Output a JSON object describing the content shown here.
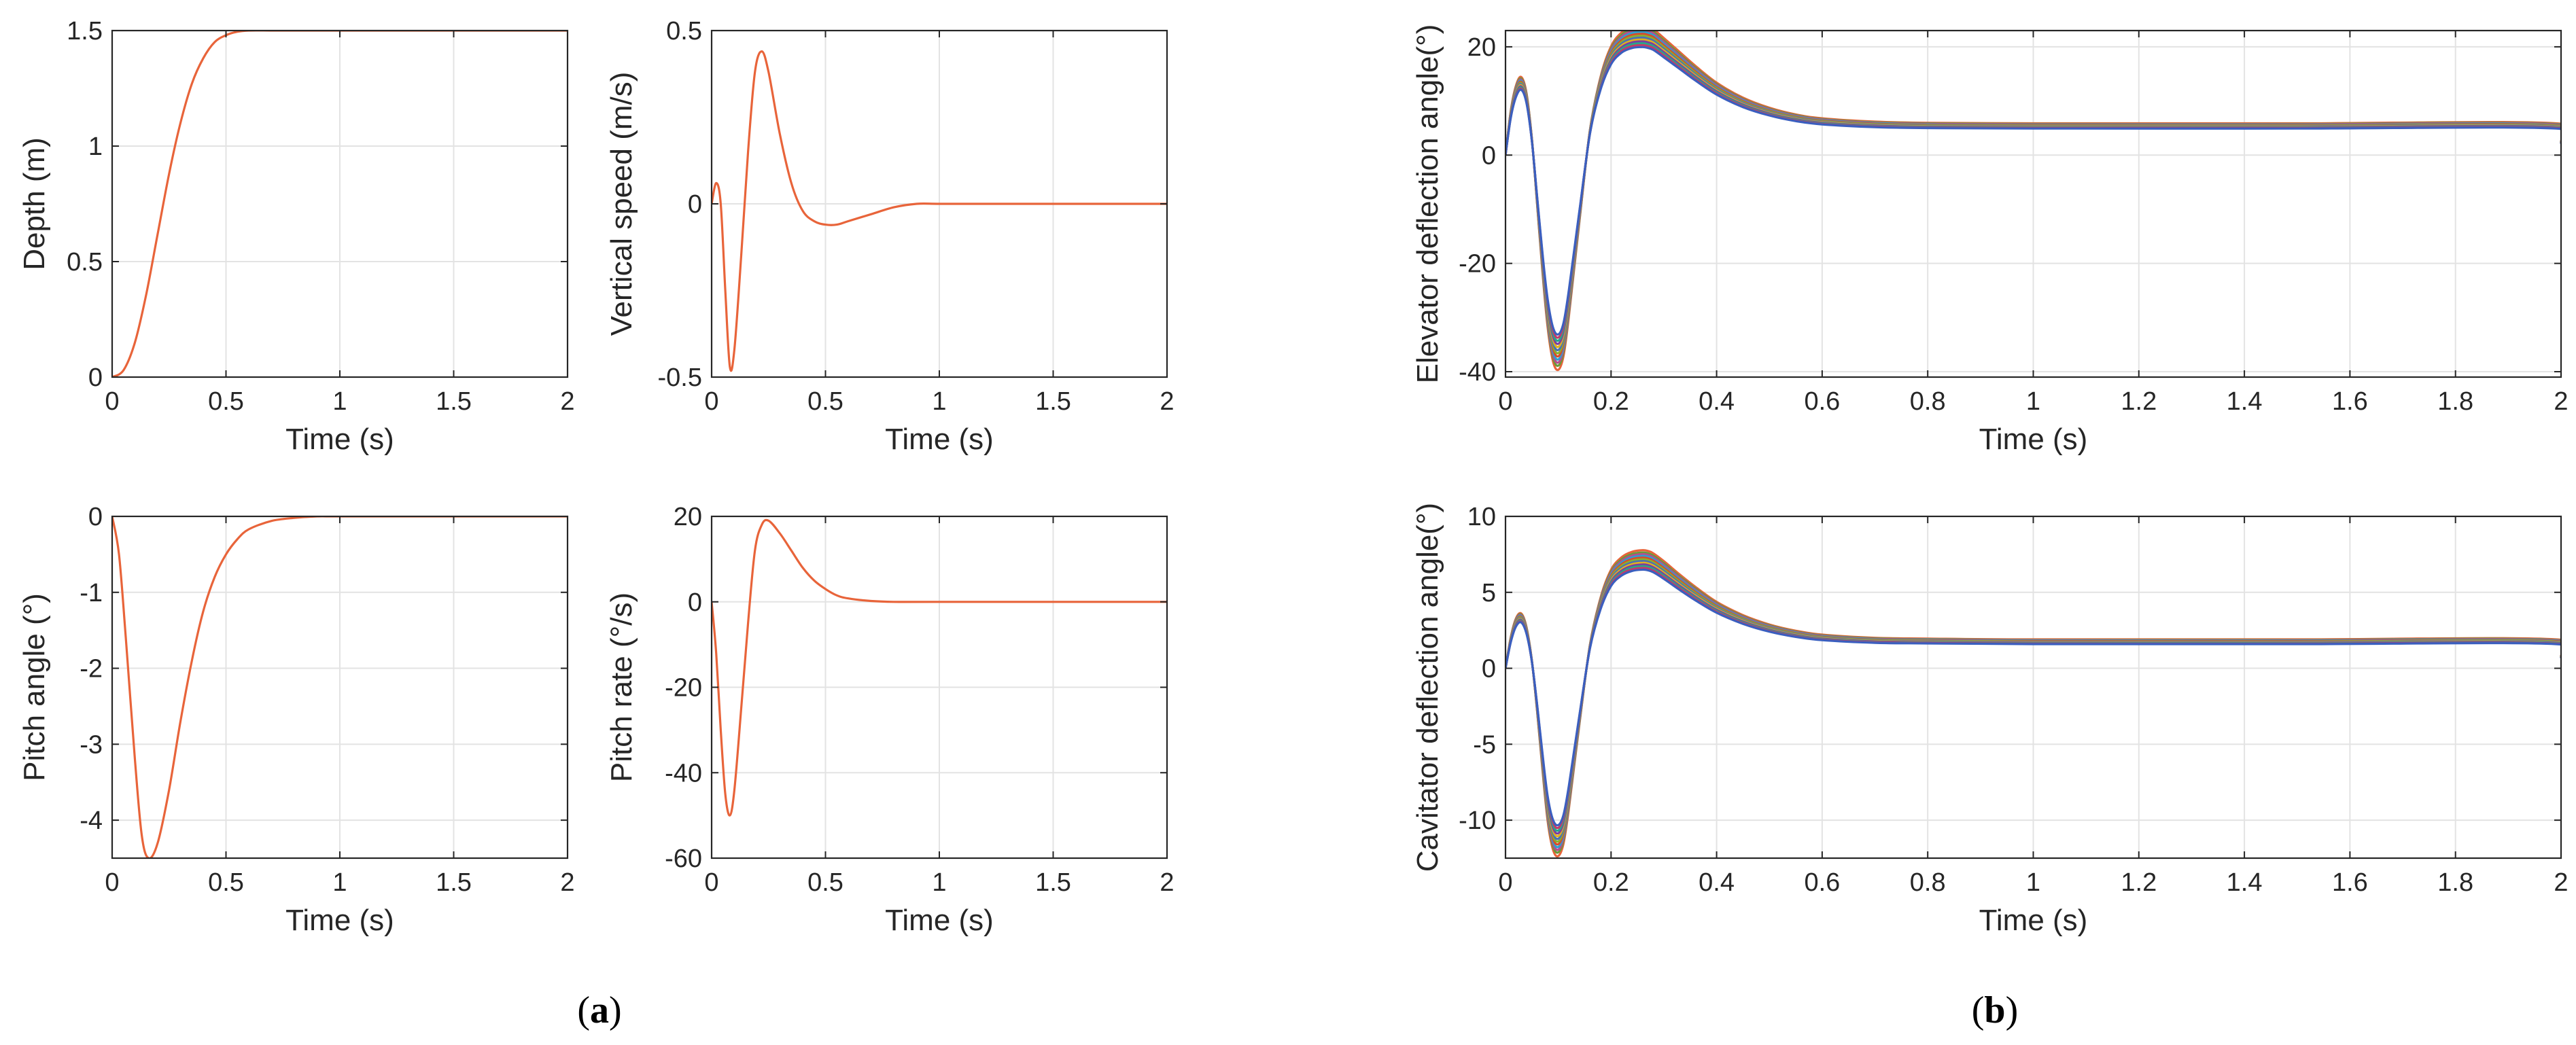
{
  "colors": {
    "single": "#e8643a",
    "multi": [
      "#e8643a",
      "#6a9a3a",
      "#b94c8c",
      "#2f9fd0",
      "#d84c2a",
      "#8ab030",
      "#4a6fb5",
      "#e0b020",
      "#7a3fa0",
      "#28a888",
      "#c23b6a",
      "#3a5fbf"
    ]
  },
  "captions": {
    "a": "a",
    "b": "b"
  },
  "chart_data": [
    {
      "id": "depth",
      "type": "line",
      "ylabel": "Depth (m)",
      "xlabel": "Time (s)",
      "xlim": [
        0,
        2
      ],
      "ylim": [
        0,
        1.5
      ],
      "xticks": [
        "0",
        "0.5",
        "1",
        "1.5",
        "2"
      ],
      "yticks": [
        "0",
        "0.5",
        "1",
        "1.5"
      ],
      "x": [
        0,
        0.05,
        0.1,
        0.15,
        0.2,
        0.25,
        0.3,
        0.35,
        0.4,
        0.45,
        0.5,
        0.55,
        0.6,
        0.7,
        0.8,
        1.0,
        1.5,
        2.0
      ],
      "y": [
        0,
        0.03,
        0.15,
        0.36,
        0.62,
        0.88,
        1.1,
        1.27,
        1.38,
        1.45,
        1.48,
        1.495,
        1.5,
        1.5,
        1.5,
        1.5,
        1.5,
        1.5
      ],
      "grid": true
    },
    {
      "id": "vspeed",
      "type": "line",
      "ylabel": "Vertical speed (m/s)",
      "xlabel": "Time (s)",
      "xlim": [
        0,
        2
      ],
      "ylim": [
        -0.5,
        0.5
      ],
      "xticks": [
        "0",
        "0.5",
        "1",
        "1.5",
        "2"
      ],
      "yticks": [
        "-0.5",
        "0",
        "0.5"
      ],
      "x": [
        0,
        0.02,
        0.04,
        0.06,
        0.08,
        0.1,
        0.13,
        0.16,
        0.19,
        0.22,
        0.25,
        0.3,
        0.35,
        0.4,
        0.45,
        0.5,
        0.55,
        0.6,
        0.7,
        0.8,
        0.9,
        1.0,
        1.2,
        1.5,
        2.0
      ],
      "y": [
        0.0,
        0.06,
        0.0,
        -0.25,
        -0.47,
        -0.42,
        -0.15,
        0.15,
        0.38,
        0.44,
        0.38,
        0.2,
        0.06,
        -0.02,
        -0.05,
        -0.06,
        -0.06,
        -0.05,
        -0.03,
        -0.01,
        0.0,
        0.0,
        0.0,
        0.0,
        0.0
      ],
      "grid": true
    },
    {
      "id": "pitch",
      "type": "line",
      "ylabel": "Pitch angle (°)",
      "xlabel": "Time (s)",
      "xlim": [
        0,
        2
      ],
      "ylim": [
        -4.5,
        0
      ],
      "xticks": [
        "0",
        "0.5",
        "1",
        "1.5",
        "2"
      ],
      "yticks": [
        "-4",
        "-3",
        "-2",
        "-1",
        "0"
      ],
      "x": [
        0,
        0.03,
        0.06,
        0.1,
        0.13,
        0.16,
        0.2,
        0.25,
        0.3,
        0.35,
        0.4,
        0.45,
        0.5,
        0.55,
        0.6,
        0.7,
        0.8,
        0.9,
        1.0,
        1.5,
        2.0
      ],
      "y": [
        0,
        -0.5,
        -1.6,
        -3.2,
        -4.2,
        -4.5,
        -4.3,
        -3.6,
        -2.7,
        -1.9,
        -1.25,
        -0.8,
        -0.5,
        -0.3,
        -0.17,
        -0.06,
        -0.02,
        0,
        0,
        0,
        0
      ],
      "grid": true
    },
    {
      "id": "prate",
      "type": "line",
      "ylabel": "Pitch rate (°/s)",
      "xlabel": "Time (s)",
      "xlim": [
        0,
        2
      ],
      "ylim": [
        -60,
        20
      ],
      "xticks": [
        "0",
        "0.5",
        "1",
        "1.5",
        "2"
      ],
      "yticks": [
        "-60",
        "-40",
        "-20",
        "0",
        "20"
      ],
      "x": [
        0,
        0.02,
        0.04,
        0.06,
        0.08,
        0.1,
        0.13,
        0.16,
        0.19,
        0.22,
        0.25,
        0.3,
        0.35,
        0.4,
        0.45,
        0.5,
        0.55,
        0.6,
        0.7,
        0.8,
        1.0,
        1.5,
        2.0
      ],
      "y": [
        0,
        -12,
        -30,
        -45,
        -50,
        -44,
        -25,
        -5,
        12,
        18,
        19,
        16,
        12,
        8,
        5,
        3,
        1.5,
        0.8,
        0.2,
        0,
        0,
        0,
        0
      ],
      "grid": true
    },
    {
      "id": "elevator",
      "type": "line",
      "ylabel": "Elevator  deflection angle(°)",
      "xlabel": "Time (s)",
      "xlim": [
        0,
        2
      ],
      "ylim": [
        -41,
        23
      ],
      "xticks": [
        "0",
        "0.2",
        "0.4",
        "0.6",
        "0.8",
        "1",
        "1.2",
        "1.4",
        "1.6",
        "1.8",
        "2"
      ],
      "yticks": [
        "-40",
        "-20",
        "0",
        "20"
      ],
      "x": [
        0,
        0.01,
        0.02,
        0.03,
        0.04,
        0.05,
        0.06,
        0.07,
        0.08,
        0.09,
        0.1,
        0.11,
        0.12,
        0.14,
        0.16,
        0.18,
        0.2,
        0.22,
        0.24,
        0.26,
        0.27,
        0.28,
        0.3,
        0.33,
        0.36,
        0.4,
        0.45,
        0.5,
        0.55,
        0.6,
        0.7,
        0.8,
        1.0,
        1.5,
        1.99,
        2.0
      ],
      "base": [
        0,
        8,
        12.5,
        14,
        11,
        3,
        -9,
        -21,
        -31,
        -37,
        -38.5,
        -36,
        -29,
        -12,
        4.5,
        14,
        19.5,
        22,
        23,
        23.2,
        23.0,
        22.6,
        21,
        18.5,
        16,
        13,
        10.3,
        8.5,
        7.3,
        6.6,
        6,
        5.8,
        5.7,
        5.7,
        5.7,
        2.5
      ],
      "series_scales": [
        1.03,
        1.01,
        0.995,
        0.98,
        0.965,
        0.95,
        0.935,
        0.92,
        0.905,
        0.89,
        0.875,
        0.86
      ],
      "grid": true
    },
    {
      "id": "cavitator",
      "type": "line",
      "ylabel": "Cavitator deflection angle(°)",
      "xlabel": "Time (s)",
      "xlim": [
        0,
        2
      ],
      "ylim": [
        -12.5,
        10
      ],
      "xticks": [
        "0",
        "0.2",
        "0.4",
        "0.6",
        "0.8",
        "1",
        "1.2",
        "1.4",
        "1.6",
        "1.8",
        "2"
      ],
      "yticks": [
        "-10",
        "-5",
        "0",
        "5",
        "10"
      ],
      "x": [
        0,
        0.01,
        0.02,
        0.03,
        0.04,
        0.05,
        0.06,
        0.07,
        0.08,
        0.09,
        0.1,
        0.11,
        0.12,
        0.14,
        0.16,
        0.18,
        0.2,
        0.22,
        0.24,
        0.26,
        0.27,
        0.28,
        0.3,
        0.33,
        0.36,
        0.4,
        0.45,
        0.5,
        0.55,
        0.6,
        0.7,
        0.8,
        1.0,
        1.5,
        1.99,
        2.0
      ],
      "base": [
        0,
        2.0,
        3.2,
        3.5,
        2.6,
        0.5,
        -2.8,
        -6.5,
        -9.8,
        -11.6,
        -12.0,
        -11.2,
        -9.0,
        -3.6,
        1.5,
        4.5,
        6.3,
        7.1,
        7.45,
        7.55,
        7.5,
        7.35,
        6.85,
        6.0,
        5.2,
        4.25,
        3.4,
        2.8,
        2.4,
        2.15,
        1.95,
        1.9,
        1.85,
        1.85,
        1.85,
        0.8
      ],
      "series_scales": [
        1.03,
        1.01,
        0.995,
        0.98,
        0.965,
        0.95,
        0.935,
        0.92,
        0.905,
        0.89,
        0.875,
        0.86
      ],
      "grid": true
    }
  ]
}
